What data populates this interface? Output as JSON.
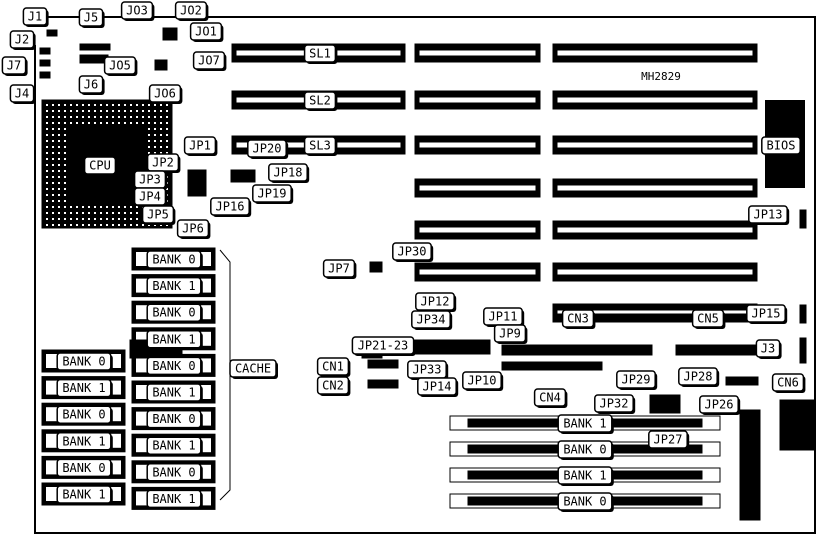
{
  "model": "MH2829",
  "components": {
    "cpu": "CPU",
    "bios": "BIOS",
    "cache": "CACHE",
    "slots": [
      "SL1",
      "SL2",
      "SL3"
    ]
  },
  "cache_banks": [
    "BANK 0",
    "BANK 1",
    "BANK 0",
    "BANK 1",
    "BANK 0",
    "BANK 1",
    "BANK 0",
    "BANK 1",
    "BANK 0",
    "BANK 1"
  ],
  "left_banks": [
    "BANK 0",
    "BANK 1",
    "BANK 0",
    "BANK 1",
    "BANK 0",
    "BANK 1"
  ],
  "dimm_banks": [
    "BANK 1",
    "BANK 0",
    "BANK 1",
    "BANK 0"
  ],
  "labels": {
    "J1": "J1",
    "J2": "J2",
    "J7": "J7",
    "J4": "J4",
    "J5": "J5",
    "J6": "J6",
    "JO3": "JO3",
    "JO2": "JO2",
    "JO1": "JO1",
    "JO5": "JO5",
    "JO7": "JO7",
    "JO6": "JO6",
    "JP1": "JP1",
    "JP2": "JP2",
    "JP3": "JP3",
    "JP4": "JP4",
    "JP5": "JP5",
    "JP6": "JP6",
    "JP20": "JP20",
    "JP18": "JP18",
    "JP19": "JP19",
    "JP16": "JP16",
    "JP13": "JP13",
    "JP7": "JP7",
    "JP30": "JP30",
    "JP12": "JP12",
    "JP34": "JP34",
    "JP21-23": "JP21-23",
    "JP11": "JP11",
    "JP9": "JP9",
    "JP33": "JP33",
    "JP14": "JP14",
    "JP10": "JP10",
    "CN1": "CN1",
    "CN2": "CN2",
    "CN3": "CN3",
    "CN5": "CN5",
    "CN4": "CN4",
    "CN6": "CN6",
    "JP15": "JP15",
    "J3": "J3",
    "JP29": "JP29",
    "JP28": "JP28",
    "JP32": "JP32",
    "JP26": "JP26",
    "JP27": "JP27"
  }
}
